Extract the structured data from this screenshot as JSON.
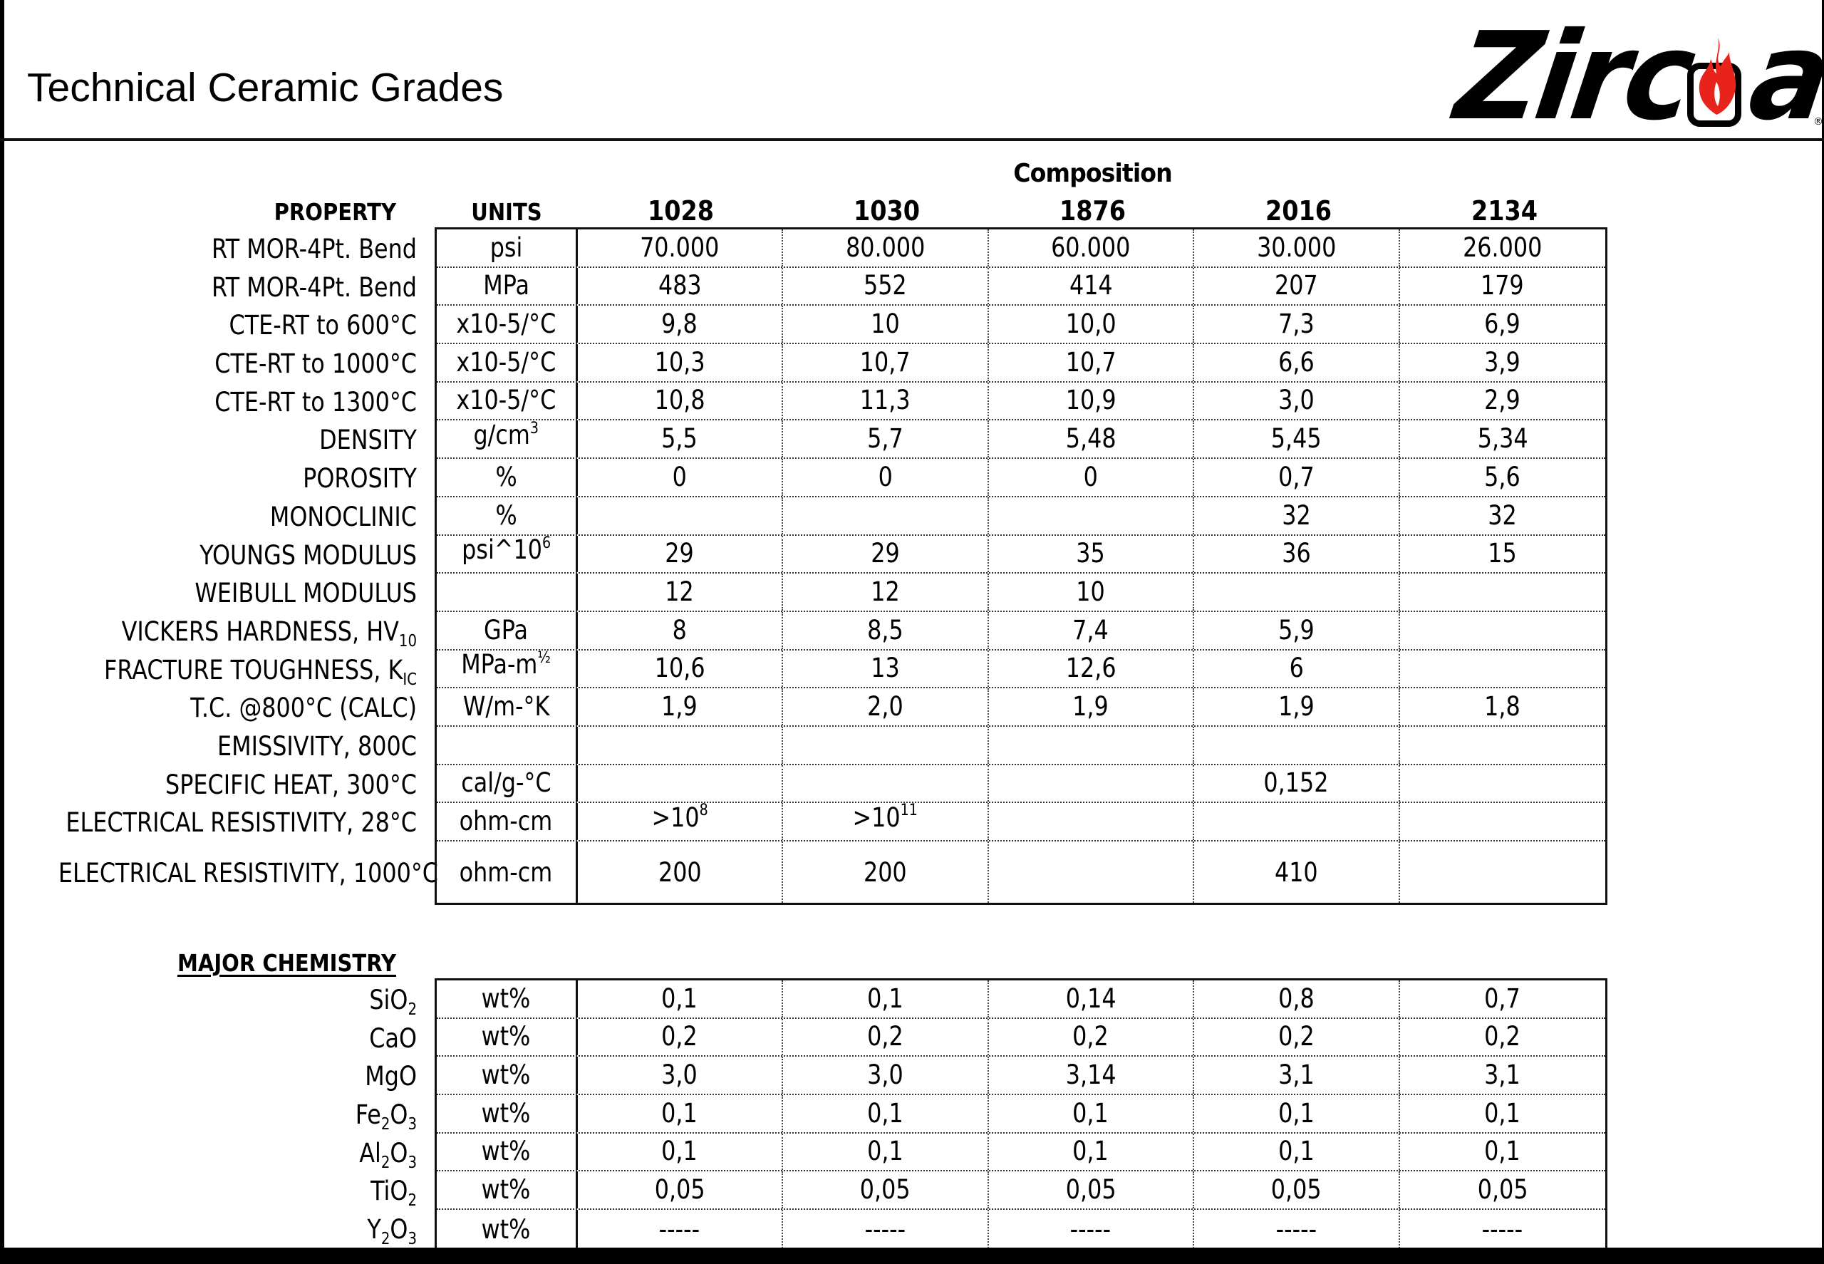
{
  "header": {
    "title": "Technical Ceramic Grades",
    "logo": {
      "text": "Zirc",
      "text_end": "a",
      "registered": "®",
      "brand_red": "#e8231b"
    }
  },
  "table": {
    "group_label": "Composition",
    "property_header": "PROPERTY",
    "units_header": "UNITS",
    "grades": [
      "1028",
      "1030",
      "1876",
      "2016",
      "2134"
    ]
  },
  "properties": [
    {
      "label": "RT MOR-4Pt. Bend",
      "unit": "psi",
      "values": [
        "70.000",
        "80.000",
        "60.000",
        "30.000",
        "26.000"
      ]
    },
    {
      "label": "RT MOR-4Pt. Bend",
      "unit": "MPa",
      "values": [
        "483",
        "552",
        "414",
        "207",
        "179"
      ]
    },
    {
      "label": "CTE-RT to 600°C",
      "unit": "x10-5/°C",
      "values": [
        "9,8",
        "10",
        "10,0",
        "7,3",
        "6,9"
      ]
    },
    {
      "label": "CTE-RT to 1000°C",
      "unit": "x10-5/°C",
      "values": [
        "10,3",
        "10,7",
        "10,7",
        "6,6",
        "3,9"
      ]
    },
    {
      "label": "CTE-RT to 1300°C",
      "unit": "x10-5/°C",
      "values": [
        "10,8",
        "11,3",
        "10,9",
        "3,0",
        "2,9"
      ]
    },
    {
      "label": "DENSITY",
      "unit": "g/cm",
      "unit_sup": "3",
      "values": [
        "5,5",
        "5,7",
        "5,48",
        "5,45",
        "5,34"
      ]
    },
    {
      "label": "POROSITY",
      "unit": "%",
      "values": [
        "0",
        "0",
        "0",
        "0,7",
        "5,6"
      ]
    },
    {
      "label": "MONOCLINIC",
      "unit": "%",
      "values": [
        "",
        "",
        "",
        "32",
        "32"
      ]
    },
    {
      "label": "YOUNGS MODULUS",
      "unit": "psi^10",
      "unit_sup": "6",
      "values": [
        "29",
        "29",
        "35",
        "36",
        "15"
      ]
    },
    {
      "label": "WEIBULL MODULUS",
      "unit": "",
      "values": [
        "12",
        "12",
        "10",
        "",
        ""
      ]
    },
    {
      "label": "VICKERS HARDNESS, HV",
      "label_sub": "10",
      "unit": "GPa",
      "values": [
        "8",
        "8,5",
        "7,4",
        "5,9",
        ""
      ]
    },
    {
      "label": "FRACTURE TOUGHNESS, K",
      "label_sub": "IC",
      "unit": "MPa-m",
      "unit_sup": "½",
      "values": [
        "10,6",
        "13",
        "12,6",
        "6",
        ""
      ]
    },
    {
      "label": "T.C. @800°C  (CALC)",
      "unit": "W/m-°K",
      "values": [
        "1,9",
        "2,0",
        "1,9",
        "1,9",
        "1,8"
      ]
    },
    {
      "label": "EMISSIVITY, 800C",
      "unit": "",
      "values": [
        "",
        "",
        "",
        "",
        ""
      ]
    },
    {
      "label": "SPECIFIC HEAT, 300°C",
      "unit": "cal/g-°C",
      "values": [
        "",
        "",
        "",
        "0,152",
        ""
      ]
    },
    {
      "label": "ELECTRICAL RESISTIVITY, 28°C",
      "unit": "ohm-cm",
      "values": [
        ">10|8",
        ">10|11",
        "",
        "",
        ""
      ]
    },
    {
      "label": "ELECTRICAL RESISTIVITY, 1000°C",
      "unit": "ohm-cm",
      "values": [
        "200",
        "200",
        "",
        "410",
        ""
      ],
      "tall": true
    }
  ],
  "chemistry": {
    "section_label": "MAJOR CHEMISTRY",
    "rows": [
      {
        "label": "SiO",
        "label_sub": "2",
        "unit": "wt%",
        "values": [
          "0,1",
          "0,1",
          "0,14",
          "0,8",
          "0,7"
        ]
      },
      {
        "label": "CaO",
        "unit": "wt%",
        "values": [
          "0,2",
          "0,2",
          "0,2",
          "0,2",
          "0,2"
        ]
      },
      {
        "label": "MgO",
        "unit": "wt%",
        "values": [
          "3,0",
          "3,0",
          "3,14",
          "3,1",
          "3,1"
        ]
      },
      {
        "label": "Fe|2|O|3",
        "unit": "wt%",
        "values": [
          "0,1",
          "0,1",
          "0,1",
          "0,1",
          "0,1"
        ]
      },
      {
        "label": "Al|2|O|3",
        "unit": "wt%",
        "values": [
          "0,1",
          "0,1",
          "0,1",
          "0,1",
          "0,1"
        ]
      },
      {
        "label": "TiO",
        "label_sub": "2",
        "unit": "wt%",
        "values": [
          "0,05",
          "0,05",
          "0,05",
          "0,05",
          "0,05"
        ]
      },
      {
        "label": "Y|2|O|3",
        "unit": "wt%",
        "values": [
          "-----",
          "-----",
          "-----",
          "-----",
          "-----"
        ]
      }
    ]
  }
}
